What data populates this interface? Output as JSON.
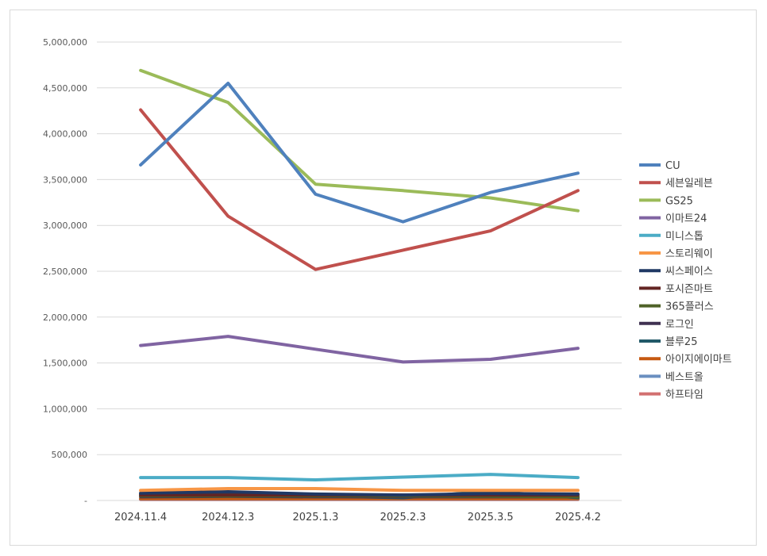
{
  "chart_data": {
    "type": "line",
    "title": "",
    "xlabel": "",
    "ylabel": "",
    "ylim": [
      0,
      5000000
    ],
    "yticks": [
      0,
      500000,
      1000000,
      1500000,
      2000000,
      2500000,
      3000000,
      3500000,
      4000000,
      4500000,
      5000000
    ],
    "ytick_labels": [
      "-",
      "500,000",
      "1,000,000",
      "1,500,000",
      "2,000,000",
      "2,500,000",
      "3,000,000",
      "3,500,000",
      "4,000,000",
      "4,500,000",
      "5,000,000"
    ],
    "categories": [
      "2024.11.4",
      "2024.12.3",
      "2025.1.3",
      "2025.2.3",
      "2025.3.5",
      "2025.4.2"
    ],
    "grid": true,
    "legend_position": "right",
    "series": [
      {
        "name": "CU",
        "color": "#4f81bd",
        "values": [
          3660000,
          4550000,
          3340000,
          3040000,
          3360000,
          3570000
        ]
      },
      {
        "name": "세븐일레븐",
        "color": "#c0504d",
        "values": [
          4260000,
          3100000,
          2520000,
          2730000,
          2940000,
          3380000
        ]
      },
      {
        "name": "GS25",
        "color": "#9bbb59",
        "values": [
          4690000,
          4340000,
          3450000,
          3380000,
          3300000,
          3160000
        ]
      },
      {
        "name": "이마트24",
        "color": "#8064a2",
        "values": [
          1690000,
          1790000,
          1650000,
          1510000,
          1540000,
          1660000
        ]
      },
      {
        "name": "미니스톱",
        "color": "#4bacc6",
        "values": [
          250000,
          250000,
          225000,
          255000,
          285000,
          250000
        ]
      },
      {
        "name": "스토리웨이",
        "color": "#f79646",
        "values": [
          110000,
          130000,
          130000,
          110000,
          110000,
          110000
        ]
      },
      {
        "name": "씨스페이스",
        "color": "#1f3864",
        "values": [
          80000,
          95000,
          70000,
          60000,
          75000,
          70000
        ]
      },
      {
        "name": "포시즌마트",
        "color": "#632523",
        "values": [
          60000,
          60000,
          60000,
          60000,
          60000,
          60000
        ]
      },
      {
        "name": "365플러스",
        "color": "#4f6228",
        "values": [
          50000,
          50000,
          50000,
          50000,
          45000,
          40000
        ]
      },
      {
        "name": "로그인",
        "color": "#3f3151",
        "values": [
          40000,
          45000,
          40000,
          40000,
          40000,
          40000
        ]
      },
      {
        "name": "블루25",
        "color": "#215968",
        "values": [
          70000,
          80000,
          50000,
          30000,
          100000,
          30000
        ]
      },
      {
        "name": "아이지에이마트",
        "color": "#c65911",
        "values": [
          20000,
          20000,
          20000,
          20000,
          20000,
          20000
        ]
      },
      {
        "name": "베스트올",
        "color": "#6a8fc0",
        "values": [
          15000,
          15000,
          15000,
          15000,
          15000,
          15000
        ]
      },
      {
        "name": "하프타임",
        "color": "#d27070",
        "values": [
          10000,
          10000,
          10000,
          10000,
          10000,
          10000
        ]
      }
    ]
  }
}
